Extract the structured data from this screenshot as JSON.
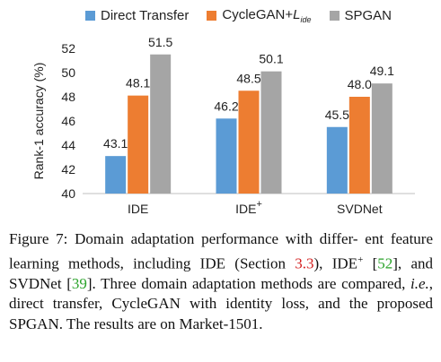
{
  "chart_data": {
    "type": "bar",
    "title": "",
    "xlabel": "",
    "ylabel": "Rank-1 accuracy (%)",
    "ylim": [
      40,
      52
    ],
    "yticks": [
      40,
      42,
      44,
      46,
      48,
      50,
      52
    ],
    "categories": [
      "IDE",
      "IDE",
      "SVDNet"
    ],
    "category_superscripts": [
      "",
      "+",
      ""
    ],
    "grid": false,
    "legend_position": "top",
    "series": [
      {
        "name": "Direct Transfer",
        "legend_main": "Direct Transfer",
        "legend_sub": "",
        "color": "#5b9bd5",
        "values": [
          43.1,
          46.2,
          45.5
        ],
        "labels": [
          "43.1",
          "46.2",
          "45.5"
        ]
      },
      {
        "name": "CycleGAN+Lide",
        "legend_main": "CycleGAN+",
        "legend_sub": "L",
        "legend_sub2": "ide",
        "color": "#ed7d31",
        "values": [
          48.1,
          48.5,
          48.0
        ],
        "labels": [
          "48.1",
          "48.5",
          "48.0"
        ]
      },
      {
        "name": "SPGAN",
        "legend_main": "SPGAN",
        "legend_sub": "",
        "color": "#a5a5a5",
        "values": [
          51.5,
          50.1,
          49.1
        ],
        "labels": [
          "51.5",
          "50.1",
          "49.1"
        ]
      }
    ]
  },
  "caption": {
    "line1": "Figure 7:  Domain adaptation performance with differ-",
    "line2a": "ent feature learning methods, including IDE (Section ",
    "sec_ref": "3.3",
    "line2b": "),",
    "ide_plus": "IDE",
    "ide_plus_sup": "+",
    "ref52": "52",
    "mid1": ", and SVDNet [",
    "ref39": "39",
    "mid2": "].   Three domain adaptation methods are compared, ",
    "ie": "i.e.",
    "mid3": ", direct transfer, CycleGAN with identity loss, and the proposed SPGAN. The results are on Market-1501."
  }
}
